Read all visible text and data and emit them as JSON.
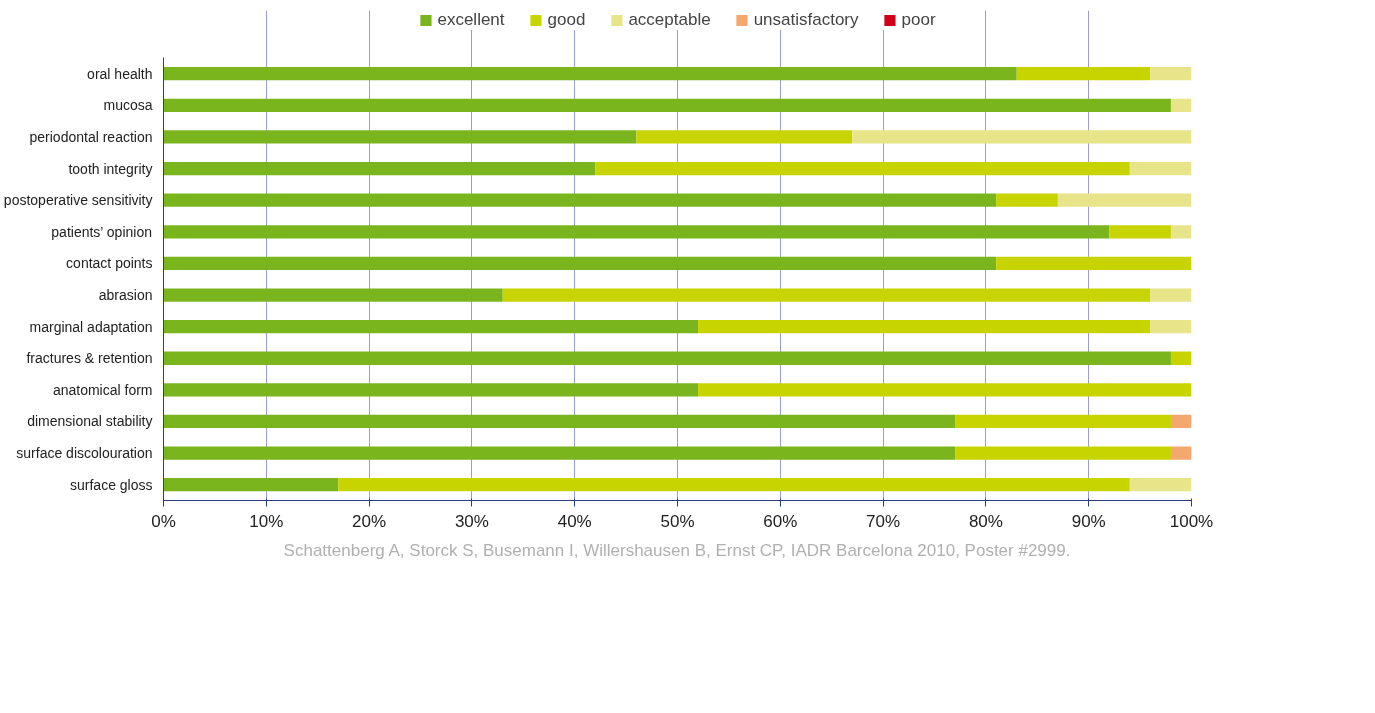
{
  "chart_data": {
    "type": "bar",
    "orientation": "horizontal",
    "stacked": true,
    "categories": [
      "oral health",
      "mucosa",
      "periodontal reaction",
      "tooth integrity",
      "postoperative sensitivity",
      "patients’ opinion",
      "contact points",
      "abrasion",
      "marginal adaptation",
      "fractures & retention",
      "anatomical form",
      "dimensional stability",
      "surface discolouration",
      "surface gloss"
    ],
    "series": [
      {
        "name": "excellent",
        "color": "#7ab51d",
        "values": [
          83,
          98,
          46,
          42,
          81,
          92,
          81,
          33,
          52,
          98,
          52,
          77,
          77,
          17
        ]
      },
      {
        "name": "good",
        "color": "#c8d400",
        "values": [
          13,
          0,
          21,
          52,
          6,
          6,
          19,
          63,
          44,
          2,
          48,
          21,
          21,
          77
        ]
      },
      {
        "name": "acceptable",
        "color": "#e8e48a",
        "values": [
          4,
          2,
          33,
          6,
          13,
          2,
          0,
          4,
          4,
          0,
          0,
          0,
          0,
          6
        ]
      },
      {
        "name": "unsatisfactory",
        "color": "#f5a86e",
        "values": [
          0,
          0,
          0,
          0,
          0,
          0,
          0,
          0,
          0,
          0,
          0,
          2,
          2,
          0
        ]
      },
      {
        "name": "poor",
        "color": "#d0021b",
        "values": [
          0,
          0,
          0,
          0,
          0,
          0,
          0,
          0,
          0,
          0,
          0,
          0,
          0,
          0
        ]
      }
    ],
    "xlim": [
      0,
      100
    ],
    "xticks": [
      {
        "value": 0,
        "label": "0%"
      },
      {
        "value": 10,
        "label": "10%"
      },
      {
        "value": 20,
        "label": "20%"
      },
      {
        "value": 30,
        "label": "30%"
      },
      {
        "value": 40,
        "label": "40%"
      },
      {
        "value": 50,
        "label": "50%"
      },
      {
        "value": 60,
        "label": "60%"
      },
      {
        "value": 70,
        "label": "70%"
      },
      {
        "value": 80,
        "label": "80%"
      },
      {
        "value": 90,
        "label": "90%"
      },
      {
        "value": 100,
        "label": "100%"
      }
    ],
    "grid": "x",
    "legend": "top",
    "annotations": [
      "Schattenberg A, Storck S, Busemann I, Willershausen B, Ernst CP, IADR Barcelona 2010, Poster #2999."
    ]
  }
}
